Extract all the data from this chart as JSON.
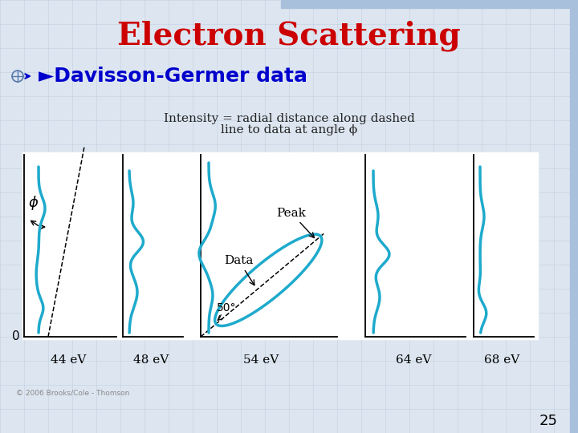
{
  "title": "Electron Scattering",
  "title_color": "#CC0000",
  "title_fontsize": 28,
  "bullet_text": "Davisson-Germer data",
  "bullet_color": "#0000CC",
  "bullet_fontsize": 18,
  "description_line1": "Intensity = radial distance along dashed",
  "description_line2": "line to data at angle ϕ",
  "description_fontsize": 11,
  "description_color": "#222222",
  "labels": [
    "44 eV",
    "48 eV",
    "54 eV",
    "64 eV",
    "68 eV"
  ],
  "annotation_50": "50°",
  "annotation_peak": "Peak",
  "annotation_data": "Data",
  "label_0": "0",
  "copyright": "© 2006 Brooks/Cole - Thomson",
  "slide_number": "25",
  "background_color": "#DDE6F0",
  "panel_bg": "#FFFFFF",
  "curve_color": "#1EAACC",
  "dashed_color": "#555555",
  "grid_color": "#B8C8DC",
  "top_bar_color": "#A8C0DC",
  "right_bar_color": "#A8C0DC"
}
